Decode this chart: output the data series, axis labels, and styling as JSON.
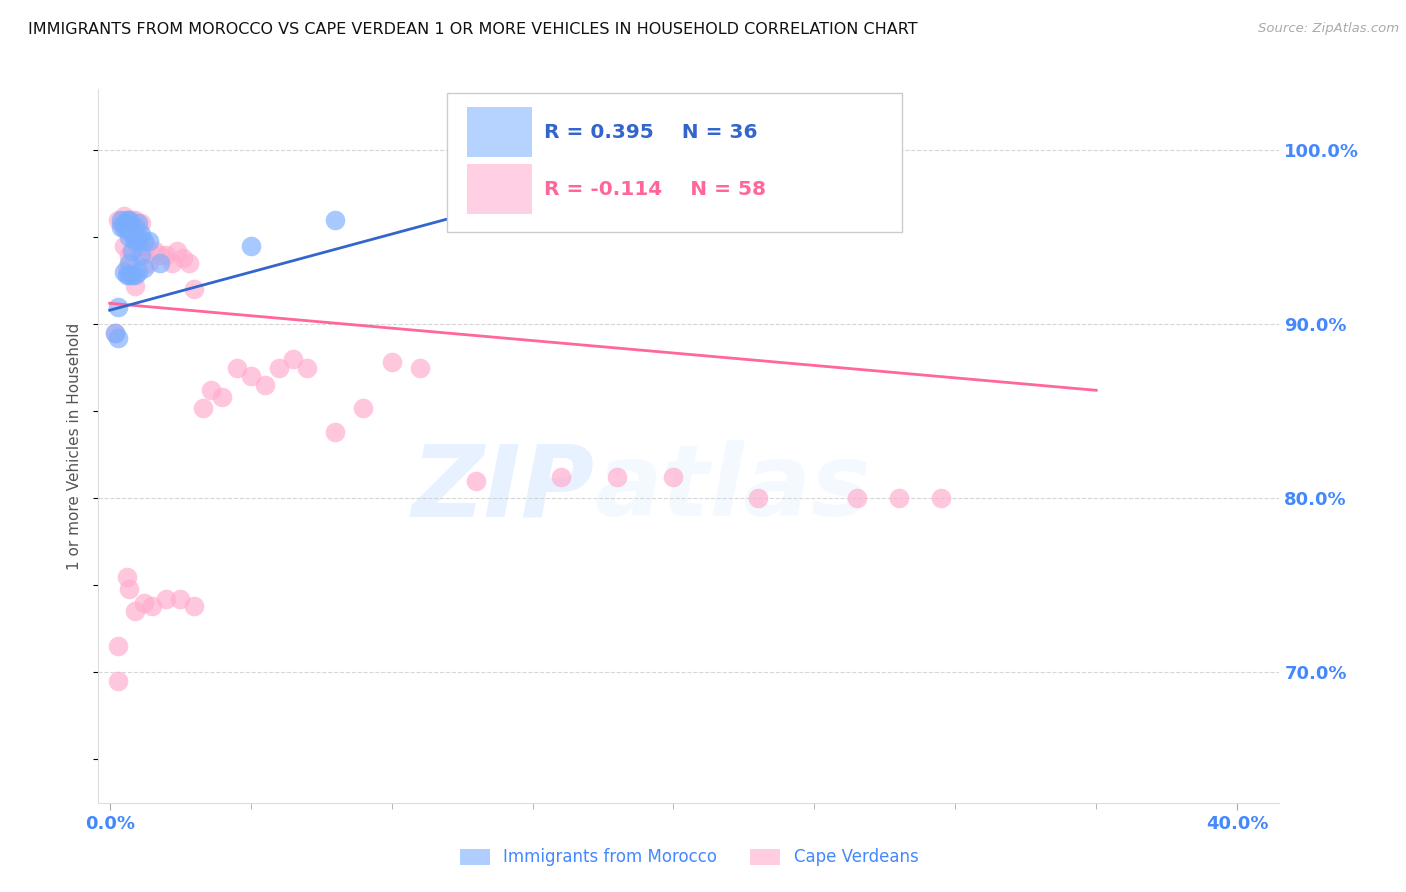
{
  "title": "IMMIGRANTS FROM MOROCCO VS CAPE VERDEAN 1 OR MORE VEHICLES IN HOUSEHOLD CORRELATION CHART",
  "source": "Source: ZipAtlas.com",
  "ylabel": "1 or more Vehicles in Household",
  "legend_blue_r": "R = 0.395",
  "legend_blue_n": "N = 36",
  "legend_pink_r": "R = -0.114",
  "legend_pink_n": "N = 58",
  "legend_label_blue": "Immigrants from Morocco",
  "legend_label_pink": "Cape Verdeans",
  "blue_color": "#7aadff",
  "pink_color": "#ffaacc",
  "trendline_blue_color": "#3366cc",
  "trendline_pink_color": "#ff6699",
  "title_color": "#111111",
  "axis_color": "#4488ff",
  "grid_color": "#cccccc",
  "background_color": "#ffffff",
  "watermark_zip": "ZIP",
  "watermark_atlas": "atlas",
  "ylim": [
    0.625,
    1.035
  ],
  "xlim": [
    -0.004,
    0.415
  ],
  "yticks": [
    0.7,
    0.8,
    0.9,
    1.0
  ],
  "ytick_labels": [
    "70.0%",
    "80.0%",
    "90.0%",
    "100.0%"
  ],
  "blue_x": [
    0.002,
    0.004,
    0.004,
    0.005,
    0.005,
    0.005,
    0.006,
    0.006,
    0.006,
    0.007,
    0.007,
    0.007,
    0.007,
    0.007,
    0.008,
    0.008,
    0.008,
    0.008,
    0.009,
    0.009,
    0.009,
    0.009,
    0.01,
    0.01,
    0.01,
    0.011,
    0.011,
    0.012,
    0.012,
    0.014,
    0.018,
    0.05,
    0.08,
    0.155,
    0.003,
    0.003
  ],
  "blue_y": [
    0.895,
    0.96,
    0.956,
    0.958,
    0.955,
    0.93,
    0.96,
    0.955,
    0.928,
    0.96,
    0.958,
    0.95,
    0.935,
    0.928,
    0.956,
    0.952,
    0.942,
    0.928,
    0.956,
    0.952,
    0.948,
    0.928,
    0.958,
    0.948,
    0.93,
    0.952,
    0.94,
    0.948,
    0.932,
    0.948,
    0.935,
    0.945,
    0.96,
    0.98,
    0.892,
    0.91
  ],
  "pink_x": [
    0.002,
    0.003,
    0.004,
    0.005,
    0.005,
    0.006,
    0.006,
    0.007,
    0.007,
    0.008,
    0.008,
    0.009,
    0.009,
    0.01,
    0.01,
    0.011,
    0.012,
    0.013,
    0.014,
    0.016,
    0.018,
    0.02,
    0.022,
    0.024,
    0.026,
    0.028,
    0.03,
    0.033,
    0.036,
    0.04,
    0.045,
    0.05,
    0.055,
    0.06,
    0.065,
    0.07,
    0.08,
    0.09,
    0.1,
    0.11,
    0.13,
    0.16,
    0.18,
    0.2,
    0.23,
    0.265,
    0.28,
    0.295,
    0.003,
    0.003,
    0.006,
    0.007,
    0.009,
    0.012,
    0.015,
    0.02,
    0.025,
    0.03
  ],
  "pink_y": [
    0.895,
    0.96,
    0.958,
    0.962,
    0.945,
    0.958,
    0.932,
    0.96,
    0.94,
    0.96,
    0.952,
    0.96,
    0.922,
    0.945,
    0.955,
    0.958,
    0.94,
    0.945,
    0.935,
    0.942,
    0.94,
    0.94,
    0.935,
    0.942,
    0.938,
    0.935,
    0.92,
    0.852,
    0.862,
    0.858,
    0.875,
    0.87,
    0.865,
    0.875,
    0.88,
    0.875,
    0.838,
    0.852,
    0.878,
    0.875,
    0.81,
    0.812,
    0.812,
    0.812,
    0.8,
    0.8,
    0.8,
    0.8,
    0.715,
    0.695,
    0.755,
    0.748,
    0.735,
    0.74,
    0.738,
    0.742,
    0.742,
    0.738
  ],
  "blue_trendline_x": [
    0.0,
    0.16
  ],
  "blue_trendline_y": [
    0.908,
    0.978
  ],
  "pink_trendline_x": [
    0.0,
    0.35
  ],
  "pink_trendline_y": [
    0.912,
    0.862
  ]
}
